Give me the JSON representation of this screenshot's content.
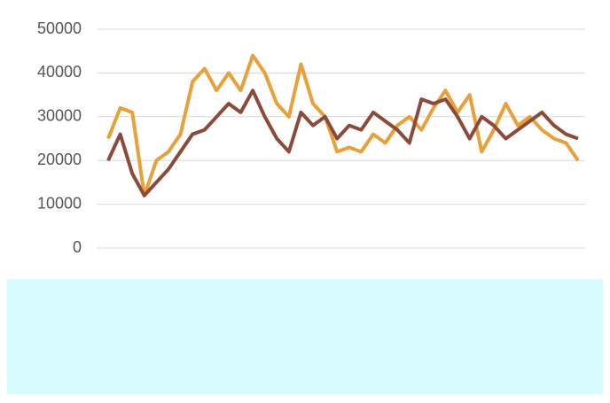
{
  "chart_data": {
    "type": "line",
    "ylim": [
      0,
      50000
    ],
    "yticks": [
      0,
      10000,
      20000,
      30000,
      40000,
      50000
    ],
    "grid": true,
    "series": [
      {
        "color": "#e8a03a",
        "values": [
          25000,
          32000,
          31000,
          12000,
          20000,
          22000,
          26000,
          38000,
          41000,
          36000,
          40000,
          36000,
          44000,
          40000,
          33000,
          30000,
          42000,
          33000,
          30000,
          22000,
          23000,
          22000,
          26000,
          24000,
          28000,
          30000,
          27000,
          32000,
          36000,
          31000,
          35000,
          22000,
          27000,
          33000,
          28000,
          30000,
          27000,
          25000,
          24000,
          20000
        ]
      },
      {
        "color": "#8b4a3a",
        "values": [
          20000,
          26000,
          17000,
          12000,
          15000,
          18000,
          22000,
          26000,
          27000,
          30000,
          33000,
          31000,
          36000,
          30000,
          25000,
          22000,
          31000,
          28000,
          30000,
          25000,
          28000,
          27000,
          31000,
          29000,
          27000,
          24000,
          34000,
          33000,
          34000,
          30000,
          25000,
          30000,
          28000,
          25000,
          27000,
          29000,
          31000,
          28000,
          26000,
          25000
        ]
      }
    ]
  }
}
